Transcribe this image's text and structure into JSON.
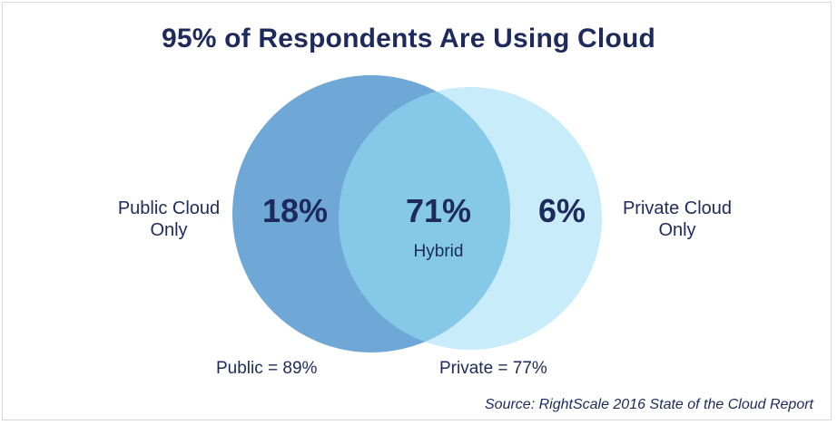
{
  "chart_data": {
    "type": "venn",
    "title": "95% of Respondents Are Using Cloud",
    "sets": [
      {
        "name": "Public",
        "total_label": "Public = 89%",
        "total_value": 89,
        "color": "#6fa8d6"
      },
      {
        "name": "Private",
        "total_label": "Private = 77%",
        "total_value": 77,
        "color": "#c9ecfb"
      }
    ],
    "regions": [
      {
        "name": "Public Cloud Only",
        "label_line1": "Public Cloud",
        "label_line2": "Only",
        "value": 18,
        "value_label": "18%"
      },
      {
        "name": "Hybrid",
        "label": "Hybrid",
        "value": 71,
        "value_label": "71%"
      },
      {
        "name": "Private Cloud Only",
        "label_line1": "Private Cloud",
        "label_line2": "Only",
        "value": 6,
        "value_label": "6%"
      }
    ],
    "overlap_color": "#85c8e8",
    "source": "Source: RightScale 2016 State of the Cloud Report"
  }
}
